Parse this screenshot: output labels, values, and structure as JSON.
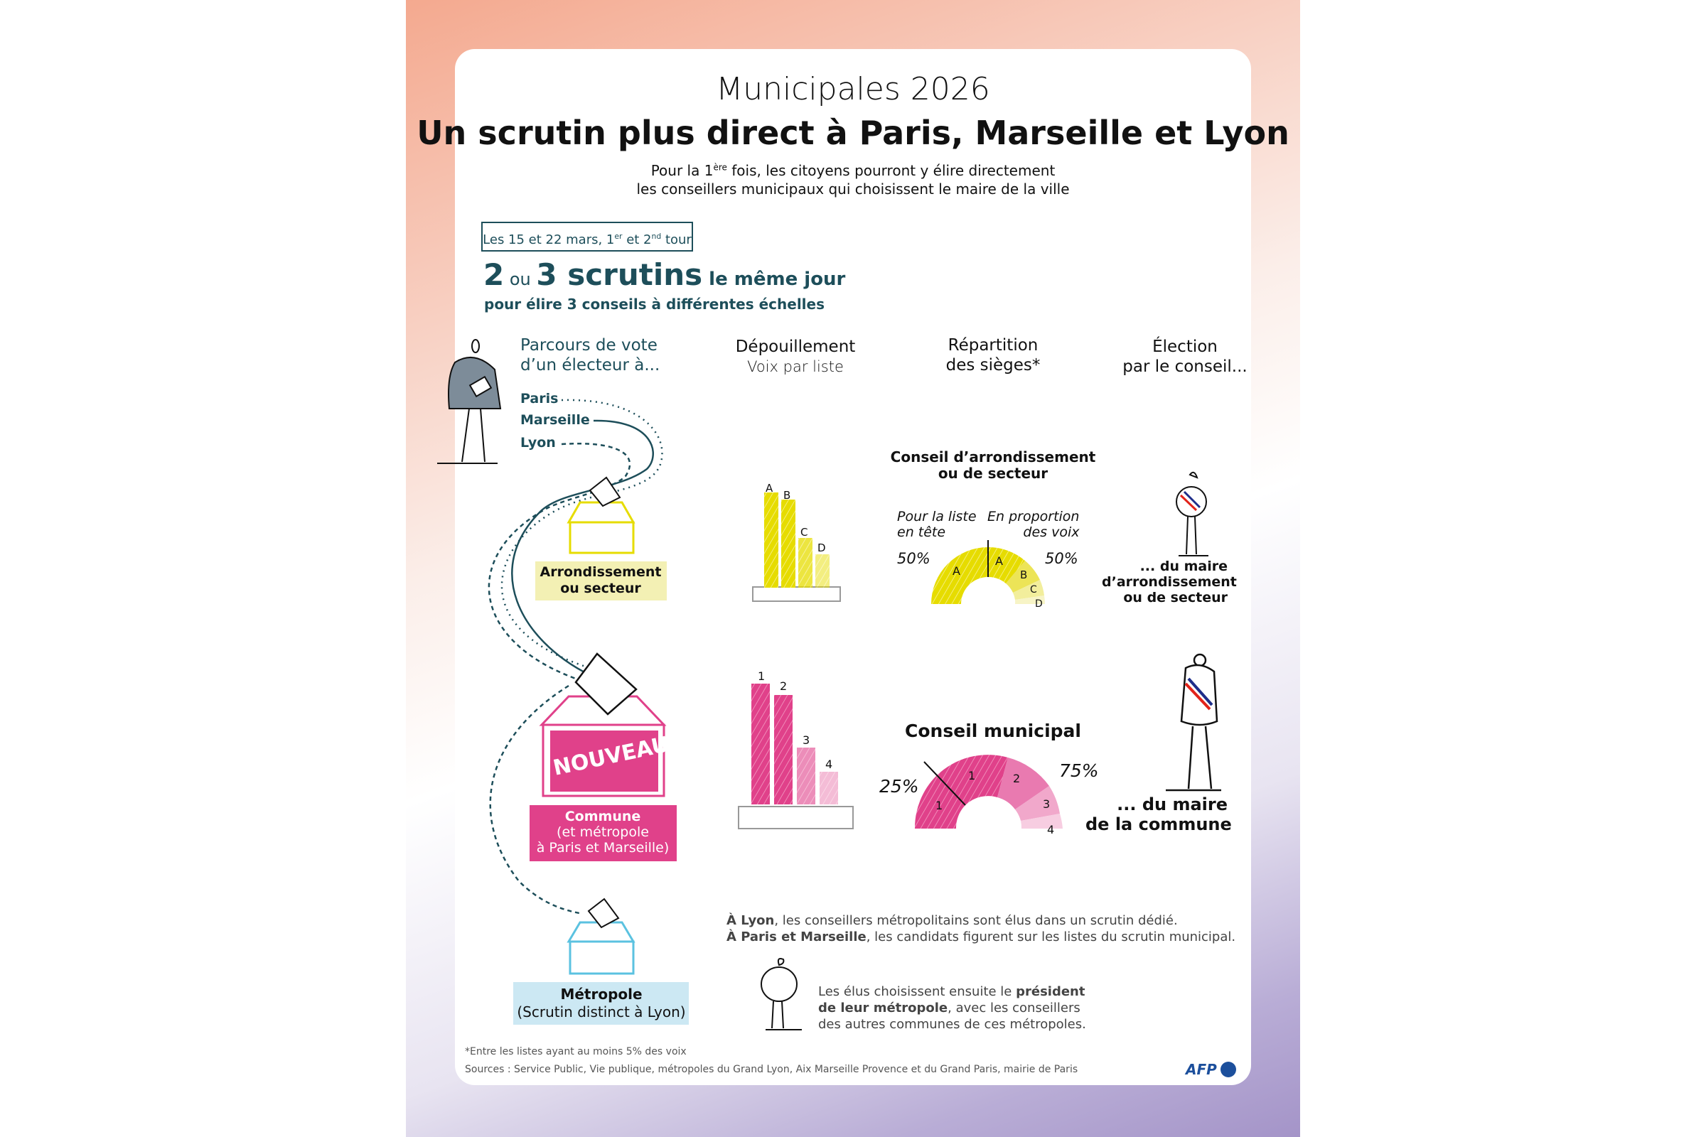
{
  "header": {
    "kicker": "Municipales 2026",
    "title": "Un scrutin plus direct à Paris, Marseille et Lyon",
    "subtitle_1a": "Pour la 1",
    "subtitle_1sup": "ère",
    "subtitle_1b": " fois, les citoyens pourront y élire directement",
    "subtitle_2": "les conseillers municipaux qui choisissent le maire de la ville"
  },
  "date_box": {
    "a": "Les 15 et 22 mars, 1",
    "sup1": "er",
    "b": " et 2",
    "sup2": "nd",
    "c": " tour"
  },
  "scrutins": {
    "n1": "2",
    "ou": " ou ",
    "n2": "3 scrutins",
    "rest": " le même jour",
    "sub": "pour élire 3 conseils à différentes échelles"
  },
  "columns": {
    "parcours": [
      "Parcours de vote",
      "d’un électeur à..."
    ],
    "depouillement": [
      "Dépouillement",
      "Voix par liste"
    ],
    "repartition": [
      "Répartition",
      "des sièges*"
    ],
    "election": [
      "Élection",
      "par le conseil..."
    ]
  },
  "cities": [
    "Paris",
    "Marseille",
    "Lyon"
  ],
  "ballot_boxes": {
    "arrondissement": [
      "Arrondissement",
      "ou secteur"
    ],
    "nouveau": "NOUVEAU",
    "commune": [
      "Commune",
      "(et métropole",
      "à Paris et Marseille)"
    ],
    "metropole": [
      "Métropole",
      "(Scrutin distinct à Lyon)"
    ]
  },
  "arrondissement_council": {
    "title": [
      "Conseil d’arrondissement",
      "ou de secteur"
    ],
    "left_label": [
      "Pour la liste",
      "en tête"
    ],
    "right_label": [
      "En proportion",
      "des voix"
    ],
    "left_pct": "50%",
    "right_pct": "50%",
    "lists": [
      "A",
      "B",
      "C",
      "D"
    ],
    "seat_list_left": "A"
  },
  "municipal_council": {
    "title": "Conseil municipal",
    "left_pct": "25%",
    "right_pct": "75%",
    "lists": [
      "1",
      "2",
      "3",
      "4"
    ],
    "seat_list_left": "1"
  },
  "mayors": {
    "arrondissement": [
      "... du maire",
      "d’arrondissement",
      "ou de secteur"
    ],
    "commune": [
      "... du maire",
      "de la commune"
    ]
  },
  "notes": {
    "lyon_b": "À Lyon",
    "lyon": ", les conseillers métropolitains sont élus dans un scrutin dédié.",
    "pm_b": "À Paris et Marseille",
    "pm": ", les candidats figurent sur les listes du scrutin municipal.",
    "elus_1": "Les élus choisissent ensuite le ",
    "elus_1b": "président",
    "elus_2b": "de leur métropole",
    "elus_2": ", avec les conseillers",
    "elus_3": "des autres communes de ces métropoles."
  },
  "footer": {
    "footnote": "*Entre les listes ayant au moins 5% des voix",
    "sources": "Sources : Service Public, Vie publique, métropoles du Grand Lyon, Aix Marseille Provence et du Grand Paris, mairie de Paris",
    "logo": "AFP"
  },
  "colors": {
    "teal": "#1d4e5a",
    "yellow": "#e6dc00",
    "pink": "#e0418a",
    "blue": "#5bc2e0"
  }
}
